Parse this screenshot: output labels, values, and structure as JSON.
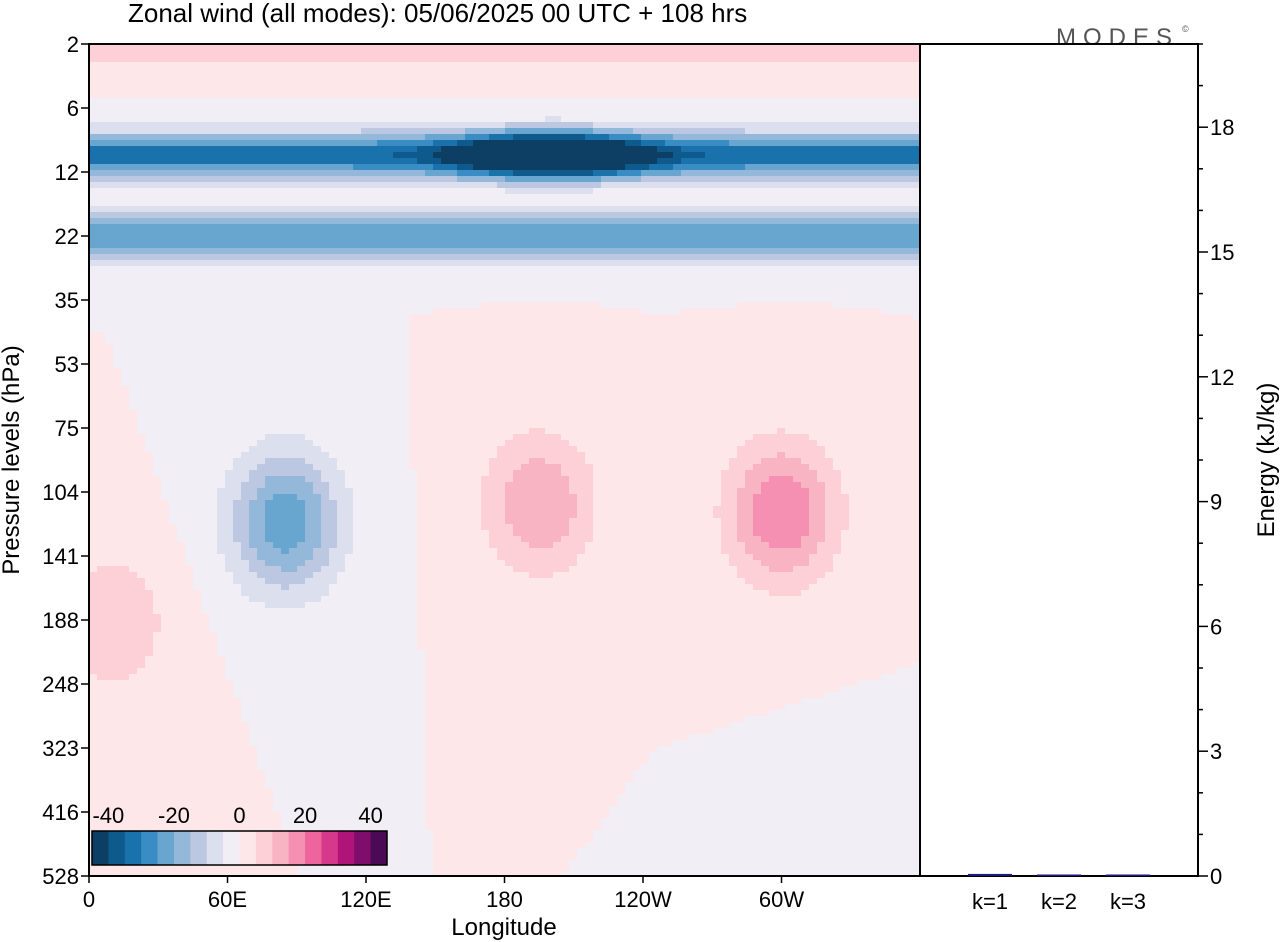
{
  "title": "Zonal wind (all modes):  05/06/2025  00 UTC  + 108 hrs",
  "logo": "MODES",
  "chart_data": [
    {
      "type": "heatmap",
      "title": "Zonal wind (all modes):  05/06/2025  00 UTC  + 108 hrs",
      "xlabel": "Longitude",
      "ylabel": "Pressure levels (hPa)",
      "x_ticks": [
        "0",
        "60E",
        "120E",
        "180",
        "120W",
        "60W"
      ],
      "y_ticks": [
        "2",
        "6",
        "12",
        "22",
        "35",
        "53",
        "75",
        "104",
        "141",
        "188",
        "248",
        "323",
        "416",
        "528"
      ],
      "colorbar": {
        "tick_labels": [
          "-40",
          "-20",
          "0",
          "20",
          "40"
        ],
        "range": [
          -45,
          45
        ],
        "colors": [
          "#0c3f63",
          "#0e5a8c",
          "#1a72ad",
          "#3a8dc4",
          "#68a6cf",
          "#94b8d9",
          "#bcc7e1",
          "#dcdfee",
          "#f2eef6",
          "#fde7e8",
          "#fcd0d6",
          "#f9b4c4",
          "#f590b2",
          "#ee659e",
          "#d6388c",
          "#b01478",
          "#7f0d6b",
          "#4a0a55"
        ]
      },
      "features": [
        {
          "level_hPa": 2,
          "longitude": "all",
          "u_ms": 10
        },
        {
          "level_hPa": 10,
          "longitude": "200E",
          "u_ms": -42
        },
        {
          "level_hPa": 10,
          "longitude": "all",
          "u_ms": -33
        },
        {
          "level_hPa": 22,
          "longitude": "all",
          "u_ms": -25
        },
        {
          "level_hPa": 120,
          "longitude": "85E",
          "u_ms": -24
        },
        {
          "level_hPa": 110,
          "longitude": "195E",
          "u_ms": 15
        },
        {
          "level_hPa": 115,
          "longitude": "300E",
          "u_ms": 20
        },
        {
          "level_hPa": 190,
          "longitude": "10E",
          "u_ms": 10
        },
        {
          "level_hPa": 500,
          "longitude": "330E",
          "u_ms": -5
        }
      ]
    },
    {
      "type": "bar",
      "ylabel": "Energy (kJ/kg)",
      "categories": [
        "k=1",
        "k=2",
        "k=3"
      ],
      "values": [
        0.05,
        0.03,
        0.01
      ],
      "ylim": [
        0,
        20
      ],
      "y_ticks": [
        "0",
        "3",
        "6",
        "9",
        "12",
        "15",
        "18"
      ]
    }
  ]
}
